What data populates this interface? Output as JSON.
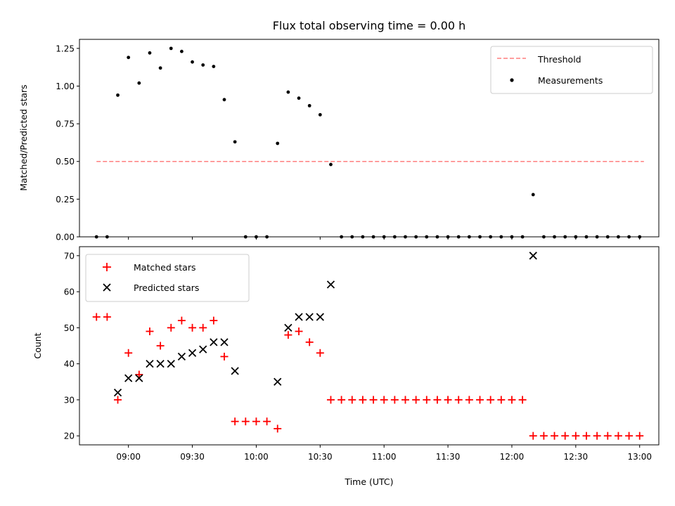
{
  "chart_data": [
    {
      "type": "scatter",
      "title": "Flux total observing time = 0.00 h",
      "xlabel": "",
      "ylabel": "Matched/Predicted stars",
      "ylim": [
        0,
        1.31
      ],
      "yticks": [
        "0.00",
        "0.25",
        "0.50",
        "0.75",
        "1.00",
        "1.25"
      ],
      "ytick_values": [
        0,
        0.25,
        0.5,
        0.75,
        1.0,
        1.25
      ],
      "legend_position": "top-right",
      "threshold": {
        "name": "Threshold",
        "value": 0.5,
        "x_start": "08:45",
        "x_end": "13:02",
        "color": "#ff7f7f",
        "style": "dashed"
      },
      "series": [
        {
          "name": "Measurements",
          "color": "#000000",
          "marker": "dot",
          "x": [
            "08:45",
            "08:50",
            "08:55",
            "09:00",
            "09:05",
            "09:10",
            "09:15",
            "09:20",
            "09:25",
            "09:30",
            "09:35",
            "09:40",
            "09:45",
            "09:50",
            "09:55",
            "10:00",
            "10:05",
            "10:10",
            "10:15",
            "10:20",
            "10:25",
            "10:30",
            "10:35",
            "10:40",
            "10:45",
            "10:50",
            "10:55",
            "11:00",
            "11:05",
            "11:10",
            "11:15",
            "11:20",
            "11:25",
            "11:30",
            "11:35",
            "11:40",
            "11:45",
            "11:50",
            "11:55",
            "12:00",
            "12:05",
            "12:10",
            "12:15",
            "12:20",
            "12:25",
            "12:30",
            "12:35",
            "12:40",
            "12:45",
            "12:50",
            "12:55",
            "13:00"
          ],
          "y": [
            0,
            0,
            0.94,
            1.19,
            1.02,
            1.22,
            1.12,
            1.25,
            1.23,
            1.16,
            1.14,
            1.13,
            0.91,
            0.63,
            0,
            0,
            0,
            0.62,
            0.96,
            0.92,
            0.87,
            0.81,
            0.48,
            0,
            0,
            0,
            0,
            0,
            0,
            0,
            0,
            0,
            0,
            0,
            0,
            0,
            0,
            0,
            0,
            0,
            0,
            0.28,
            0,
            0,
            0,
            0,
            0,
            0,
            0,
            0,
            0,
            0
          ]
        }
      ]
    },
    {
      "type": "scatter",
      "title": "",
      "xlabel": "Time (UTC)",
      "ylabel": "Count",
      "ylim": [
        17.5,
        72.5
      ],
      "yticks": [
        "20",
        "30",
        "40",
        "50",
        "60",
        "70"
      ],
      "ytick_values": [
        20,
        30,
        40,
        50,
        60,
        70
      ],
      "xlim": [
        "08:37",
        "13:09"
      ],
      "xticks": [
        "09:00",
        "09:30",
        "10:00",
        "10:30",
        "11:00",
        "11:30",
        "12:00",
        "12:30",
        "13:00"
      ],
      "legend_position": "top-left",
      "series": [
        {
          "name": "Matched stars",
          "color": "#ff0000",
          "marker": "plus",
          "x": [
            "08:45",
            "08:50",
            "08:55",
            "09:00",
            "09:05",
            "09:10",
            "09:15",
            "09:20",
            "09:25",
            "09:30",
            "09:35",
            "09:40",
            "09:45",
            "09:50",
            "09:55",
            "10:00",
            "10:05",
            "10:10",
            "10:15",
            "10:20",
            "10:25",
            "10:30",
            "10:35",
            "10:40",
            "10:45",
            "10:50",
            "10:55",
            "11:00",
            "11:05",
            "11:10",
            "11:15",
            "11:20",
            "11:25",
            "11:30",
            "11:35",
            "11:40",
            "11:45",
            "11:50",
            "11:55",
            "12:00",
            "12:05",
            "12:10",
            "12:15",
            "12:20",
            "12:25",
            "12:30",
            "12:35",
            "12:40",
            "12:45",
            "12:50",
            "12:55",
            "13:00"
          ],
          "y": [
            53,
            53,
            30,
            43,
            37,
            49,
            45,
            50,
            52,
            50,
            50,
            52,
            42,
            24,
            24,
            24,
            24,
            22,
            48,
            49,
            46,
            43,
            30,
            30,
            30,
            30,
            30,
            30,
            30,
            30,
            30,
            30,
            30,
            30,
            30,
            30,
            30,
            30,
            30,
            30,
            30,
            20,
            20,
            20,
            20,
            20,
            20,
            20,
            20,
            20,
            20,
            20
          ]
        },
        {
          "name": "Predicted stars",
          "color": "#000000",
          "marker": "x",
          "x": [
            "08:55",
            "09:00",
            "09:05",
            "09:10",
            "09:15",
            "09:20",
            "09:25",
            "09:30",
            "09:35",
            "09:40",
            "09:45",
            "09:50",
            "10:10",
            "10:15",
            "10:20",
            "10:25",
            "10:30",
            "10:35",
            "12:10"
          ],
          "y": [
            32,
            36,
            36,
            40,
            40,
            40,
            42,
            43,
            44,
            46,
            46,
            38,
            35,
            50,
            53,
            53,
            53,
            62,
            70
          ]
        }
      ]
    }
  ]
}
